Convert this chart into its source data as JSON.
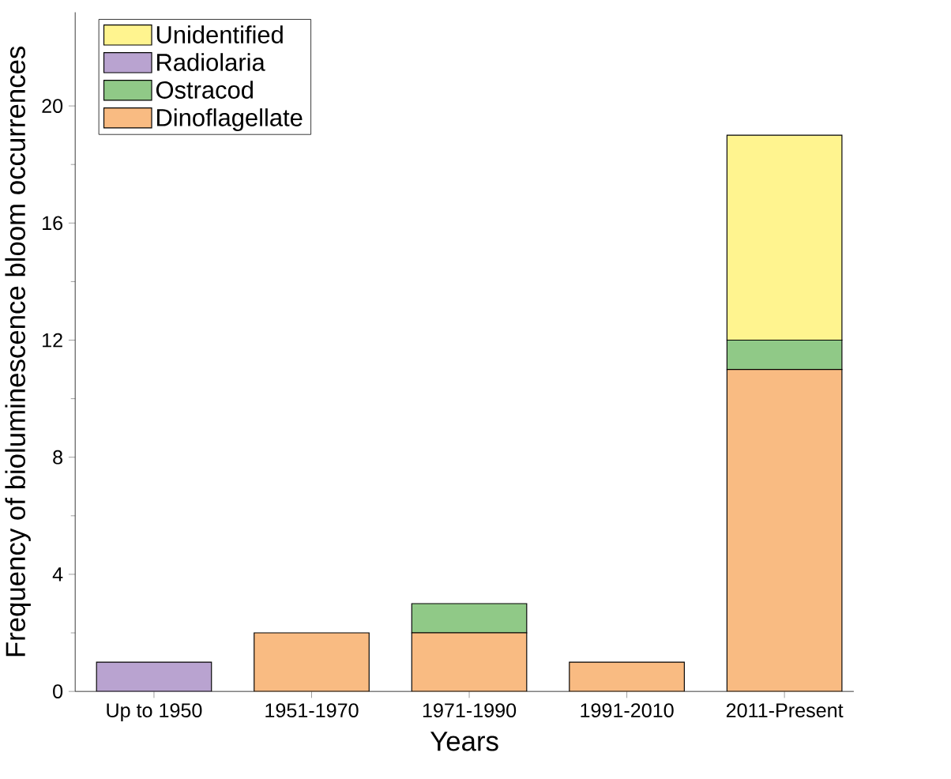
{
  "chart_data": {
    "type": "bar",
    "stacked": true,
    "xlabel": "Years",
    "ylabel": "Frequency of bioluminescence bloom occurrences",
    "categories": [
      "Up to 1950",
      "1951-1970",
      "1971-1990",
      "1991-2010",
      "2011-Present"
    ],
    "series": [
      {
        "name": "Dinoflagellate",
        "color": "#f9bb82",
        "values": [
          0,
          2,
          2,
          1,
          11
        ]
      },
      {
        "name": "Ostracod",
        "color": "#90c987",
        "values": [
          0,
          0,
          1,
          0,
          1
        ]
      },
      {
        "name": "Radiolaria",
        "color": "#b9a3d0",
        "values": [
          1,
          0,
          0,
          0,
          0
        ]
      },
      {
        "name": "Unidentified",
        "color": "#fff48f",
        "values": [
          0,
          0,
          0,
          0,
          7
        ]
      }
    ],
    "ylim": [
      0,
      23.2
    ],
    "yticks": [
      0,
      4,
      8,
      12,
      16,
      20
    ],
    "legend": "top left",
    "grid": false
  }
}
